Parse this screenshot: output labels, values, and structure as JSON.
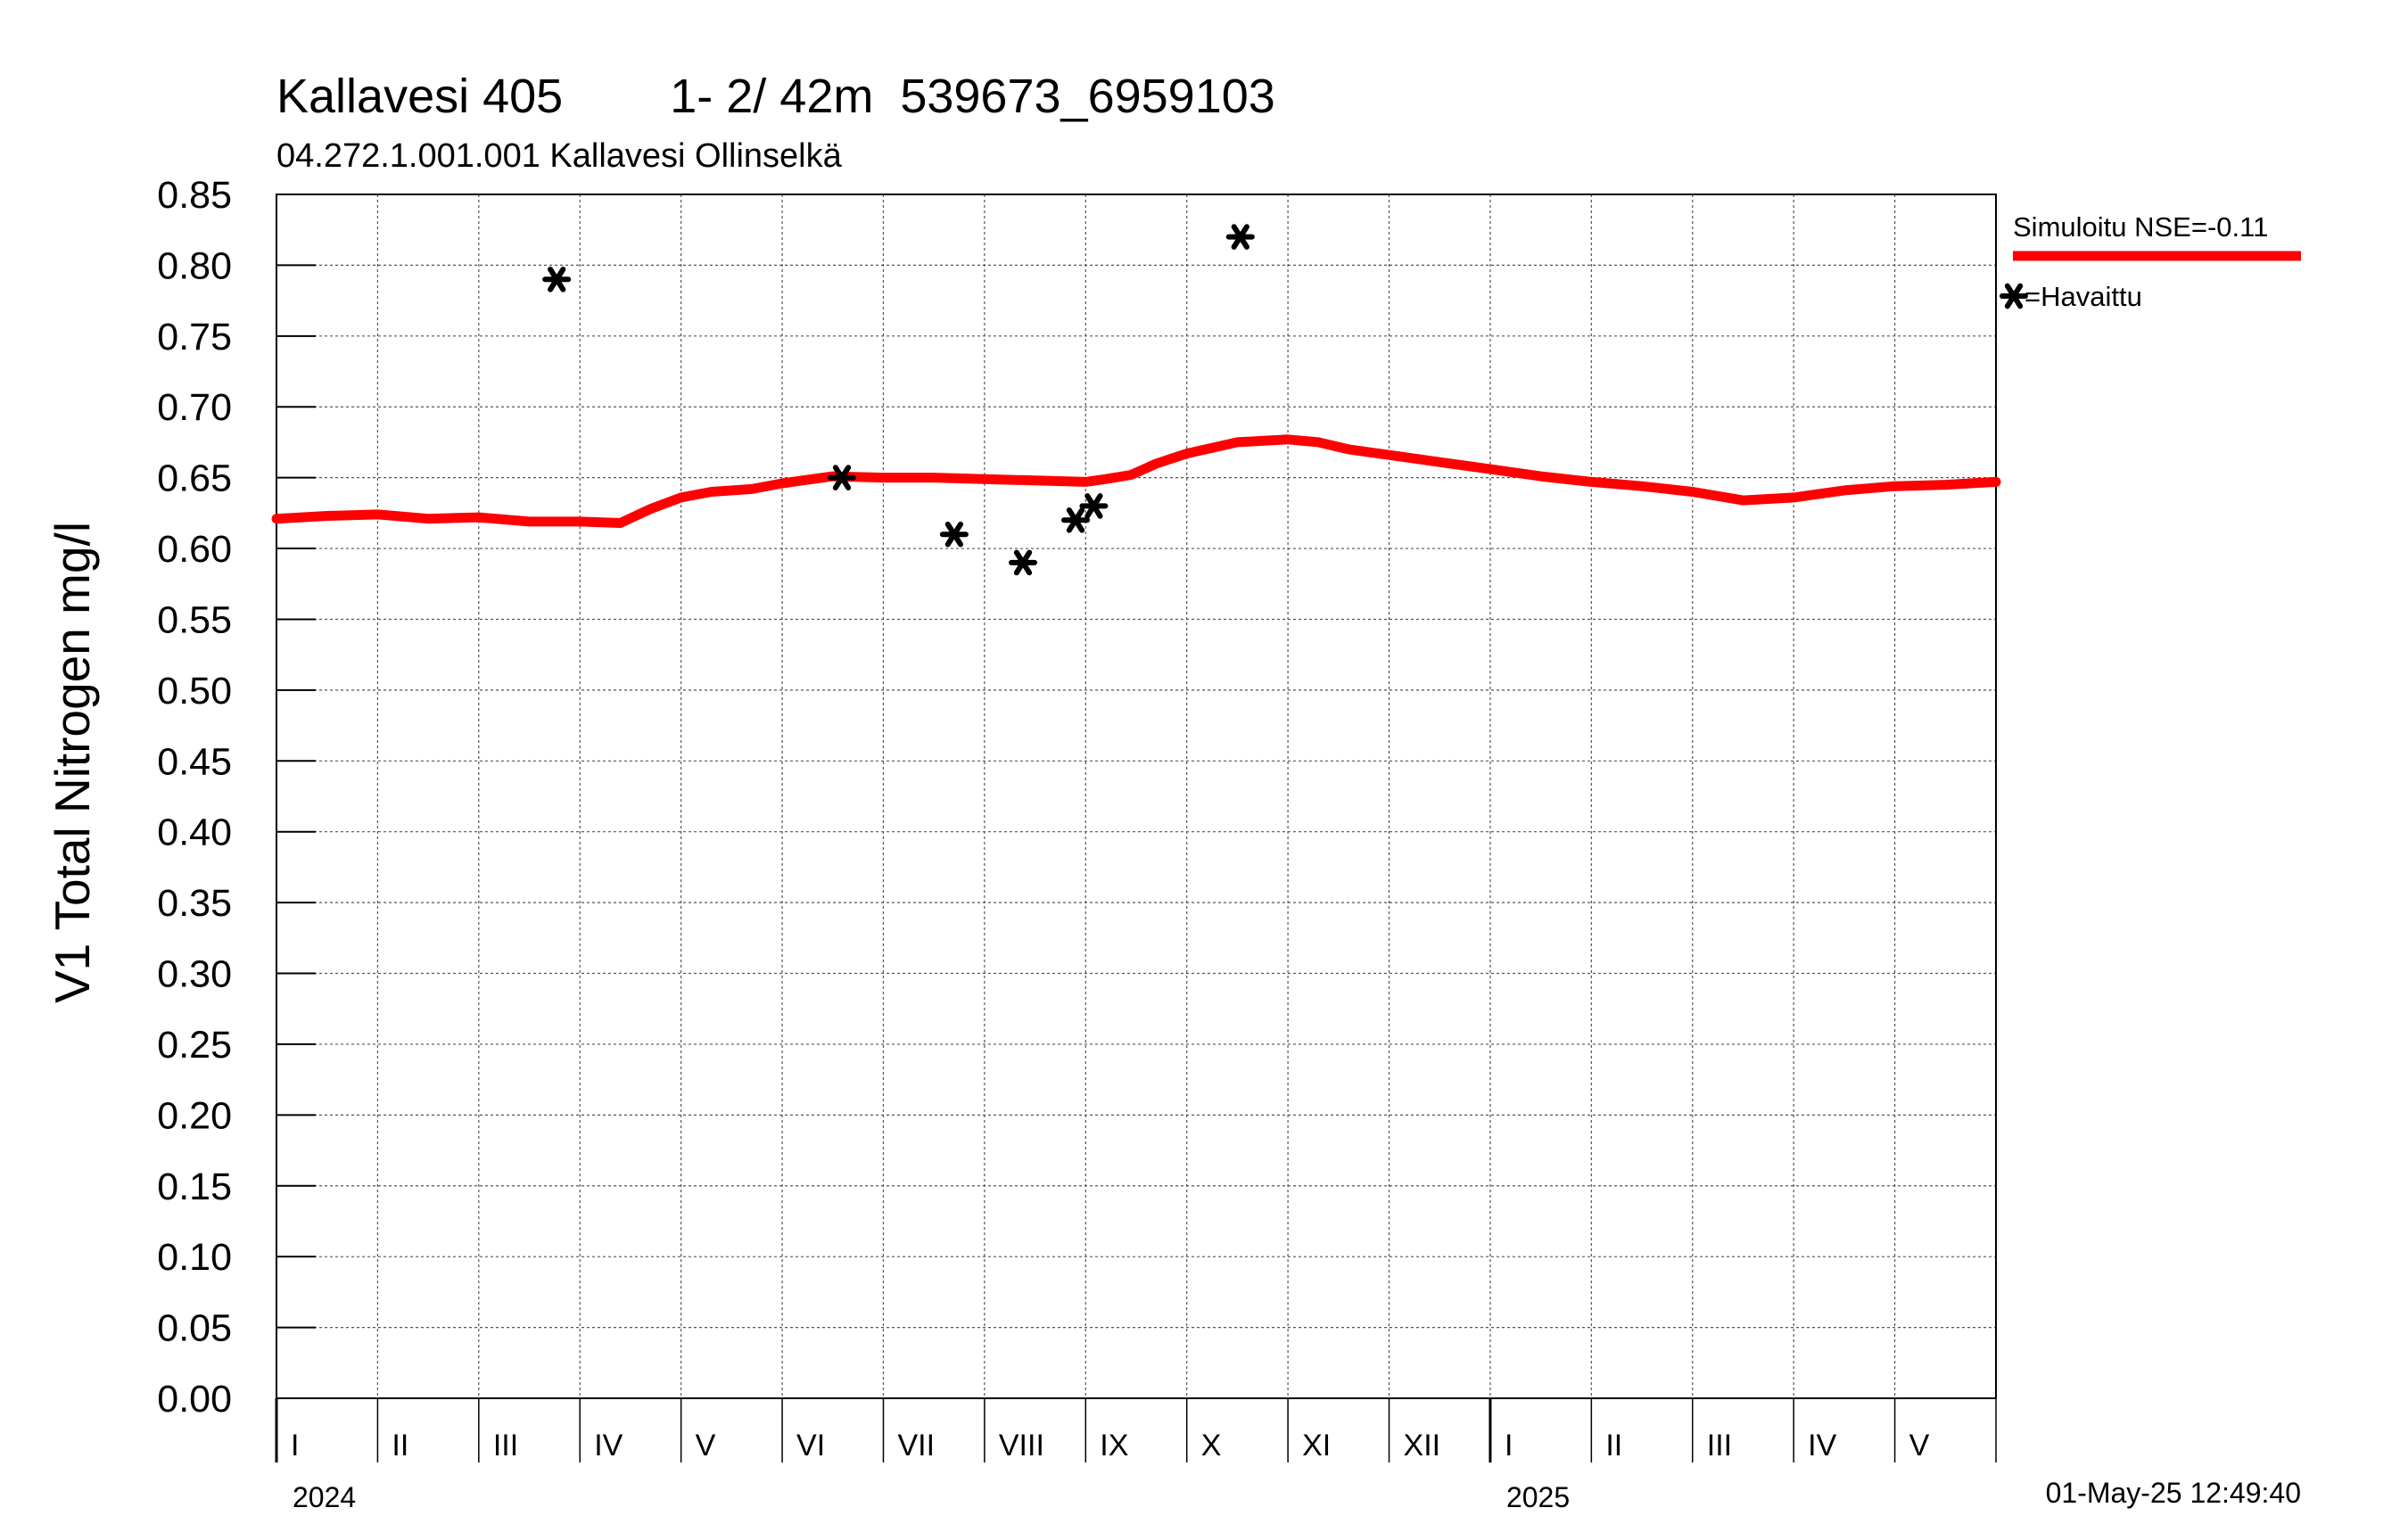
{
  "chart_data": {
    "type": "line",
    "title": "Kallavesi 405        1- 2/ 42m  539673_6959103",
    "subtitle": "04.272.1.001.001 Kallavesi Ollinselkä",
    "ylabel": "V1 Total Nitrogen mg/l",
    "ylim": [
      0,
      0.85
    ],
    "yticks": [
      "0.00",
      "0.05",
      "0.10",
      "0.15",
      "0.20",
      "0.25",
      "0.30",
      "0.35",
      "0.40",
      "0.45",
      "0.50",
      "0.55",
      "0.60",
      "0.65",
      "0.70",
      "0.75",
      "0.80",
      "0.85"
    ],
    "xlim_months": [
      0,
      17
    ],
    "months": [
      "I",
      "II",
      "III",
      "IV",
      "V",
      "VI",
      "VII",
      "VIII",
      "IX",
      "X",
      "XI",
      "XII",
      "I",
      "II",
      "III",
      "IV",
      "V"
    ],
    "years": [
      {
        "label": "2024",
        "month_index": 0
      },
      {
        "label": "2025",
        "month_index": 12
      }
    ],
    "grid": true,
    "legend_position": "right",
    "timestamp": "01-May-25 12:49:40",
    "series": [
      {
        "name": "Simuloitu NSE=-0.11",
        "style": "line",
        "color": "#ff0000",
        "x": [
          0.0,
          0.5,
          1.0,
          1.5,
          2.0,
          2.5,
          3.0,
          3.4,
          3.7,
          4.0,
          4.3,
          4.7,
          5.0,
          5.5,
          6.0,
          6.5,
          7.0,
          7.5,
          8.0,
          8.2,
          8.45,
          8.7,
          9.0,
          9.5,
          10.0,
          10.3,
          10.6,
          11.0,
          11.5,
          12.0,
          12.5,
          13.0,
          13.5,
          14.0,
          14.5,
          15.0,
          15.5,
          16.0,
          16.5,
          17.0
        ],
        "y": [
          0.621,
          0.623,
          0.624,
          0.621,
          0.622,
          0.619,
          0.619,
          0.618,
          0.628,
          0.636,
          0.64,
          0.642,
          0.646,
          0.651,
          0.65,
          0.65,
          0.649,
          0.648,
          0.647,
          0.649,
          0.652,
          0.66,
          0.667,
          0.675,
          0.677,
          0.675,
          0.67,
          0.666,
          0.661,
          0.656,
          0.651,
          0.647,
          0.644,
          0.64,
          0.634,
          0.636,
          0.641,
          0.644,
          0.645,
          0.647
        ]
      },
      {
        "name": "=Havaittu",
        "style": "marker",
        "marker": "asterisk",
        "color": "#000000",
        "x": [
          2.77,
          5.59,
          6.7,
          7.38,
          7.9,
          8.08,
          9.53
        ],
        "y": [
          0.79,
          0.65,
          0.61,
          0.59,
          0.62,
          0.63,
          0.82
        ]
      }
    ]
  }
}
